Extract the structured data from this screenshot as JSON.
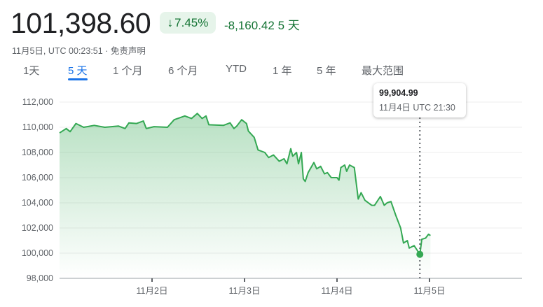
{
  "header": {
    "price": "101,398.60",
    "change_pct": "7.45%",
    "change_abs": "-8,160.42",
    "change_period": "5 天",
    "timestamp": "11月5日, UTC 00:23:51 · ",
    "disclaimer": "免责声明",
    "arrow_icon": "arrow-down-icon"
  },
  "tabs": [
    {
      "label": "1天"
    },
    {
      "label": "5 天",
      "active": true
    },
    {
      "label": "1 个月"
    },
    {
      "label": "6 个月"
    },
    {
      "label": "YTD"
    },
    {
      "label": "1 年"
    },
    {
      "label": "5 年"
    },
    {
      "label": "最大范围"
    }
  ],
  "tooltip": {
    "value": "99,904.99",
    "time": "11月4日 UTC 21:30"
  },
  "colors": {
    "line": "#34a853",
    "positive": "#137333",
    "accent": "#1a73e8"
  },
  "chart_data": {
    "type": "area",
    "ylim": [
      98000,
      112000
    ],
    "yticks": [
      "112,000",
      "110,000",
      "108,000",
      "106,000",
      "104,000",
      "102,000",
      "100,000",
      "98,000"
    ],
    "ytick_values": [
      112000,
      110000,
      108000,
      106000,
      104000,
      102000,
      100000,
      98000
    ],
    "xlim": [
      "11-01 00:00",
      "11-06 00:00"
    ],
    "xticks": [
      {
        "label": "11月2日",
        "t": "11-02 00:00"
      },
      {
        "label": "11月3日",
        "t": "11-03 00:00"
      },
      {
        "label": "11月4日",
        "t": "11-04 00:00"
      },
      {
        "label": "11月5日",
        "t": "11-05 00:00"
      }
    ],
    "grid": true,
    "highlight": {
      "t": "11-04 21:30",
      "value": 99904.99
    },
    "points": [
      [
        "11-01 00:00",
        109550
      ],
      [
        "11-01 01:45",
        109900
      ],
      [
        "11-01 02:45",
        109650
      ],
      [
        "11-01 04:15",
        110300
      ],
      [
        "11-01 06:15",
        110000
      ],
      [
        "11-01 09:00",
        110150
      ],
      [
        "11-01 11:45",
        110000
      ],
      [
        "11-01 15:15",
        110100
      ],
      [
        "11-01 17:00",
        109900
      ],
      [
        "11-01 18:00",
        110350
      ],
      [
        "11-01 20:00",
        110300
      ],
      [
        "11-01 21:45",
        110500
      ],
      [
        "11-01 22:30",
        109900
      ],
      [
        "11-02 00:30",
        110050
      ],
      [
        "11-02 04:00",
        110000
      ],
      [
        "11-02 05:45",
        110600
      ],
      [
        "11-02 08:30",
        110900
      ],
      [
        "11-02 10:15",
        110700
      ],
      [
        "11-02 11:45",
        111100
      ],
      [
        "11-02 13:00",
        110700
      ],
      [
        "11-02 14:00",
        110900
      ],
      [
        "11-02 14:45",
        110200
      ],
      [
        "11-02 18:30",
        110150
      ],
      [
        "11-02 20:15",
        110350
      ],
      [
        "11-02 21:15",
        109900
      ],
      [
        "11-02 22:00",
        110100
      ],
      [
        "11-02 23:15",
        110600
      ],
      [
        "11-03 00:30",
        110300
      ],
      [
        "11-03 01:00",
        109700
      ],
      [
        "11-03 02:30",
        109200
      ],
      [
        "11-03 03:30",
        108200
      ],
      [
        "11-03 05:15",
        108000
      ],
      [
        "11-03 06:15",
        107600
      ],
      [
        "11-03 07:30",
        107800
      ],
      [
        "11-03 09:00",
        107300
      ],
      [
        "11-03 10:15",
        107500
      ],
      [
        "11-03 11:00",
        107100
      ],
      [
        "11-03 12:00",
        108300
      ],
      [
        "11-03 12:30",
        107700
      ],
      [
        "11-03 13:30",
        108000
      ],
      [
        "11-03 14:00",
        107100
      ],
      [
        "11-03 14:45",
        108000
      ],
      [
        "11-03 15:15",
        105900
      ],
      [
        "11-03 15:45",
        105700
      ],
      [
        "11-03 16:30",
        106400
      ],
      [
        "11-03 18:00",
        107200
      ],
      [
        "11-03 18:45",
        106700
      ],
      [
        "11-03 19:45",
        106900
      ],
      [
        "11-03 20:45",
        106300
      ],
      [
        "11-03 21:30",
        106400
      ],
      [
        "11-03 22:30",
        106000
      ],
      [
        "11-04 00:00",
        106000
      ],
      [
        "11-04 00:30",
        105800
      ],
      [
        "11-04 01:00",
        106800
      ],
      [
        "11-04 02:00",
        107000
      ],
      [
        "11-04 02:30",
        106500
      ],
      [
        "11-04 03:15",
        107000
      ],
      [
        "11-04 04:30",
        106800
      ],
      [
        "11-04 05:30",
        104300
      ],
      [
        "11-04 06:15",
        104800
      ],
      [
        "11-04 07:15",
        104200
      ],
      [
        "11-04 09:00",
        103800
      ],
      [
        "11-04 09:45",
        103800
      ],
      [
        "11-04 11:15",
        104500
      ],
      [
        "11-04 12:15",
        103800
      ],
      [
        "11-04 13:00",
        104000
      ],
      [
        "11-04 14:00",
        104100
      ],
      [
        "11-04 15:15",
        103000
      ],
      [
        "11-04 16:30",
        102000
      ],
      [
        "11-04 17:15",
        100800
      ],
      [
        "11-04 18:15",
        101000
      ],
      [
        "11-04 18:45",
        100400
      ],
      [
        "11-04 20:00",
        100600
      ],
      [
        "11-04 21:30",
        99905
      ],
      [
        "11-04 22:00",
        101100
      ],
      [
        "11-04 23:00",
        101200
      ],
      [
        "11-04 23:45",
        101500
      ],
      [
        "11-05 00:15",
        101400
      ]
    ]
  }
}
